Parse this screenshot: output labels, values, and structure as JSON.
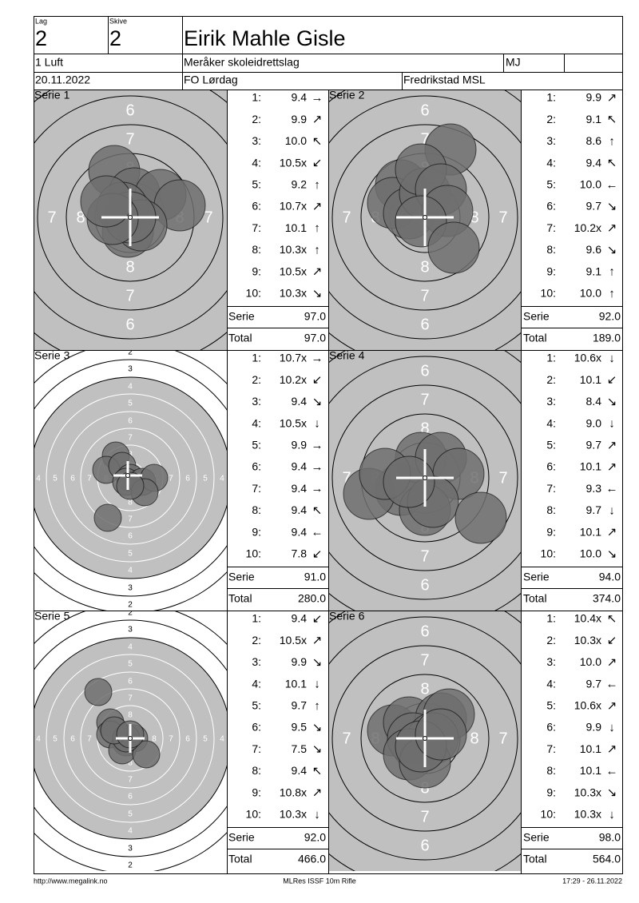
{
  "header": {
    "lag_label": "Lag",
    "lag": "2",
    "skive_label": "Skive",
    "skive": "2",
    "name": "Eirik Mahle Gisle",
    "class": "1 Luft",
    "club": "Meråker skoleidrettslag",
    "category": "MJ",
    "date": "20.11.2022",
    "event": "FO Lørdag",
    "venue": "Fredrikstad MSL"
  },
  "series": [
    {
      "title": "Serie 1",
      "target": {
        "style": "zoomed",
        "ring_labels": [
          "6",
          "7",
          "8"
        ]
      },
      "shots": [
        {
          "n": "1:",
          "value": "9.4",
          "arrow": "→"
        },
        {
          "n": "2:",
          "value": "9.9",
          "arrow": "↗"
        },
        {
          "n": "3:",
          "value": "10.0",
          "arrow": "↖"
        },
        {
          "n": "4:",
          "value": "10.5x",
          "arrow": "↙"
        },
        {
          "n": "5:",
          "value": "9.2",
          "arrow": "↑"
        },
        {
          "n": "6:",
          "value": "10.7x",
          "arrow": "↗"
        },
        {
          "n": "7:",
          "value": "10.1",
          "arrow": "↑"
        },
        {
          "n": "8:",
          "value": "10.3x",
          "arrow": "↑"
        },
        {
          "n": "9:",
          "value": "10.5x",
          "arrow": "↗"
        },
        {
          "n": "10:",
          "value": "10.3x",
          "arrow": "↘"
        }
      ],
      "serie_label": "Serie",
      "serie": "97.0",
      "total_label": "Total",
      "total": "97.0"
    },
    {
      "title": "Serie 2",
      "target": {
        "style": "zoomed",
        "ring_labels": [
          "6",
          "7",
          "8"
        ]
      },
      "shots": [
        {
          "n": "1:",
          "value": "9.9",
          "arrow": "↗"
        },
        {
          "n": "2:",
          "value": "9.1",
          "arrow": "↖"
        },
        {
          "n": "3:",
          "value": "8.6",
          "arrow": "↑"
        },
        {
          "n": "4:",
          "value": "9.4",
          "arrow": "↖"
        },
        {
          "n": "5:",
          "value": "10.0",
          "arrow": "←"
        },
        {
          "n": "6:",
          "value": "9.7",
          "arrow": "↘"
        },
        {
          "n": "7:",
          "value": "10.2x",
          "arrow": "↗"
        },
        {
          "n": "8:",
          "value": "9.6",
          "arrow": "↘"
        },
        {
          "n": "9:",
          "value": "9.1",
          "arrow": "↑"
        },
        {
          "n": "10:",
          "value": "10.0",
          "arrow": "↑"
        }
      ],
      "serie_label": "Serie",
      "serie": "92.0",
      "total_label": "Total",
      "total": "189.0"
    },
    {
      "title": "Serie 3",
      "target": {
        "style": "wide",
        "ring_labels": [
          "2",
          "3",
          "4",
          "5",
          "6",
          "7",
          "8"
        ]
      },
      "shots": [
        {
          "n": "1:",
          "value": "10.7x",
          "arrow": "→"
        },
        {
          "n": "2:",
          "value": "10.2x",
          "arrow": "↙"
        },
        {
          "n": "3:",
          "value": "9.4",
          "arrow": "↘"
        },
        {
          "n": "4:",
          "value": "10.5x",
          "arrow": "↓"
        },
        {
          "n": "5:",
          "value": "9.9",
          "arrow": "→"
        },
        {
          "n": "6:",
          "value": "9.4",
          "arrow": "→"
        },
        {
          "n": "7:",
          "value": "9.4",
          "arrow": "→"
        },
        {
          "n": "8:",
          "value": "9.4",
          "arrow": "↖"
        },
        {
          "n": "9:",
          "value": "9.4",
          "arrow": "←"
        },
        {
          "n": "10:",
          "value": "7.8",
          "arrow": "↙"
        }
      ],
      "serie_label": "Serie",
      "serie": "91.0",
      "total_label": "Total",
      "total": "280.0"
    },
    {
      "title": "Serie 4",
      "target": {
        "style": "zoomed",
        "ring_labels": [
          "6",
          "7",
          "8"
        ]
      },
      "shots": [
        {
          "n": "1:",
          "value": "10.6x",
          "arrow": "↓"
        },
        {
          "n": "2:",
          "value": "10.1",
          "arrow": "↙"
        },
        {
          "n": "3:",
          "value": "8.4",
          "arrow": "↘"
        },
        {
          "n": "4:",
          "value": "9.0",
          "arrow": "↓"
        },
        {
          "n": "5:",
          "value": "9.7",
          "arrow": "↗"
        },
        {
          "n": "6:",
          "value": "10.1",
          "arrow": "↗"
        },
        {
          "n": "7:",
          "value": "9.3",
          "arrow": "←"
        },
        {
          "n": "8:",
          "value": "9.7",
          "arrow": "↓"
        },
        {
          "n": "9:",
          "value": "10.1",
          "arrow": "↗"
        },
        {
          "n": "10:",
          "value": "10.0",
          "arrow": "↘"
        }
      ],
      "serie_label": "Serie",
      "serie": "94.0",
      "total_label": "Total",
      "total": "374.0"
    },
    {
      "title": "Serie 5",
      "target": {
        "style": "wide",
        "ring_labels": [
          "2",
          "3",
          "4",
          "5",
          "6",
          "7",
          "8"
        ]
      },
      "shots": [
        {
          "n": "1:",
          "value": "9.4",
          "arrow": "↙"
        },
        {
          "n": "2:",
          "value": "10.5x",
          "arrow": "↗"
        },
        {
          "n": "3:",
          "value": "9.9",
          "arrow": "↘"
        },
        {
          "n": "4:",
          "value": "10.1",
          "arrow": "↓"
        },
        {
          "n": "5:",
          "value": "9.7",
          "arrow": "↑"
        },
        {
          "n": "6:",
          "value": "9.5",
          "arrow": "↘"
        },
        {
          "n": "7:",
          "value": "7.5",
          "arrow": "↘"
        },
        {
          "n": "8:",
          "value": "9.4",
          "arrow": "↖"
        },
        {
          "n": "9:",
          "value": "10.8x",
          "arrow": "↗"
        },
        {
          "n": "10:",
          "value": "10.3x",
          "arrow": "↓"
        }
      ],
      "serie_label": "Serie",
      "serie": "92.0",
      "total_label": "Total",
      "total": "466.0"
    },
    {
      "title": "Serie 6",
      "target": {
        "style": "zoomed",
        "ring_labels": [
          "6",
          "7",
          "8"
        ]
      },
      "shots": [
        {
          "n": "1:",
          "value": "10.4x",
          "arrow": "↖"
        },
        {
          "n": "2:",
          "value": "10.3x",
          "arrow": "↙"
        },
        {
          "n": "3:",
          "value": "10.0",
          "arrow": "↗"
        },
        {
          "n": "4:",
          "value": "9.7",
          "arrow": "←"
        },
        {
          "n": "5:",
          "value": "10.6x",
          "arrow": "↗"
        },
        {
          "n": "6:",
          "value": "9.9",
          "arrow": "↓"
        },
        {
          "n": "7:",
          "value": "10.1",
          "arrow": "↗"
        },
        {
          "n": "8:",
          "value": "10.1",
          "arrow": "←"
        },
        {
          "n": "9:",
          "value": "10.3x",
          "arrow": "↘"
        },
        {
          "n": "10:",
          "value": "10.3x",
          "arrow": "↓"
        }
      ],
      "serie_label": "Serie",
      "serie": "98.0",
      "total_label": "Total",
      "total": "564.0"
    }
  ],
  "footer": {
    "url": "http://www.megalink.no",
    "software": "MLRes ISSF 10m Rifle",
    "timestamp": "17:29 - 26.11.2022"
  }
}
